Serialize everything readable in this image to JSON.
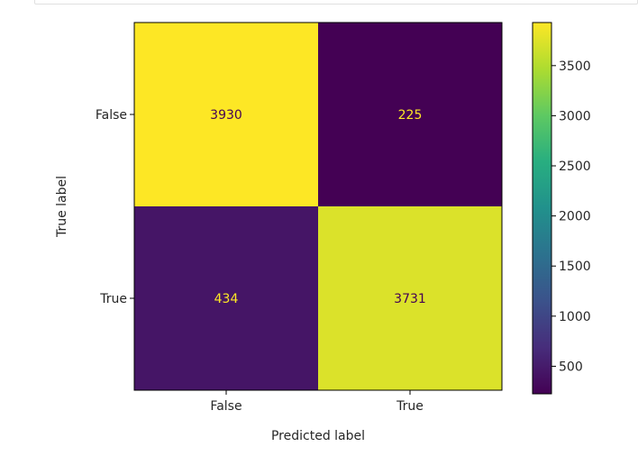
{
  "chart_data": {
    "type": "heatmap",
    "title": "",
    "xlabel": "Predicted label",
    "ylabel": "True label",
    "x_categories": [
      "False",
      "True"
    ],
    "y_categories": [
      "False",
      "True"
    ],
    "matrix": [
      [
        3930,
        225
      ],
      [
        434,
        3731
      ]
    ],
    "colormap": "viridis",
    "colorbar": {
      "min": 225,
      "max": 3930,
      "ticks": [
        500,
        1000,
        1500,
        2000,
        2500,
        3000,
        3500
      ]
    }
  }
}
